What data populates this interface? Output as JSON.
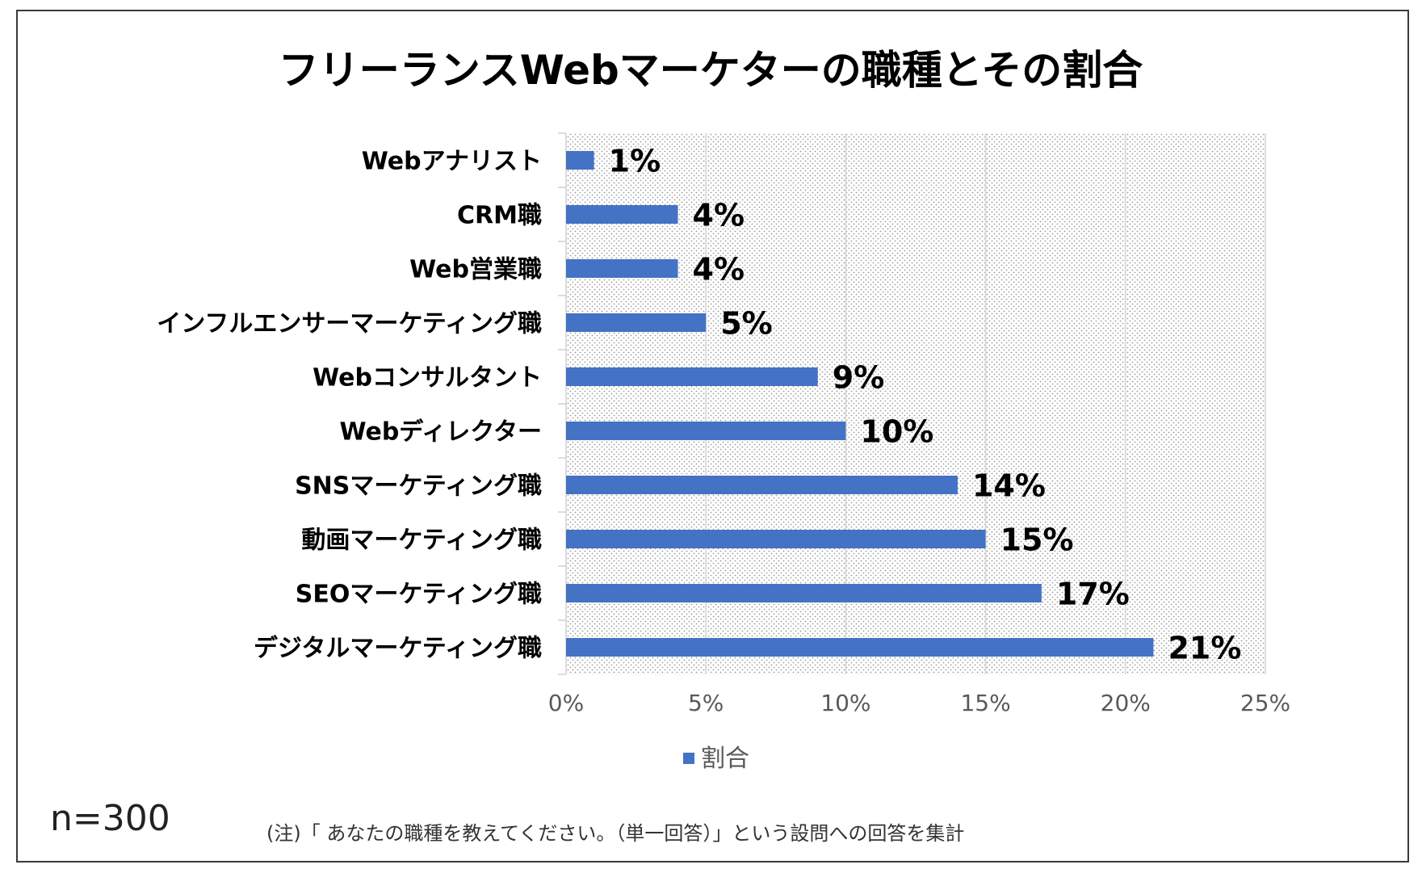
{
  "chart_data": {
    "type": "bar",
    "orientation": "horizontal",
    "title": "フリーランスWebマーケターの職種とその割合",
    "categories": [
      "Webアナリスト",
      "CRM職",
      "Web営業職",
      "インフルエンサーマーケティング職",
      "Webコンサルタント",
      "Webディレクター",
      "SNSマーケティング職",
      "動画マーケティング職",
      "SEOマーケティング職",
      "デジタルマーケティング職"
    ],
    "series": [
      {
        "name": "割合",
        "values": [
          1,
          4,
          4,
          5,
          9,
          10,
          14,
          15,
          17,
          21
        ]
      }
    ],
    "data_labels": [
      "1%",
      "4%",
      "4%",
      "5%",
      "9%",
      "10%",
      "14%",
      "15%",
      "17%",
      "21%"
    ],
    "xlim": [
      0,
      25
    ],
    "xticks": [
      "0%",
      "5%",
      "10%",
      "15%",
      "20%",
      "25%"
    ],
    "xtick_values": [
      0,
      5,
      10,
      15,
      20,
      25
    ],
    "grid": true,
    "legend_position": "bottom",
    "bar_color": "#4472c4",
    "plot_background": "dotted"
  },
  "footer": {
    "sample_size": "n=300",
    "note": "(注)「 あなたの職種を教えてください。（単一回答）」という設問への回答を集計"
  }
}
